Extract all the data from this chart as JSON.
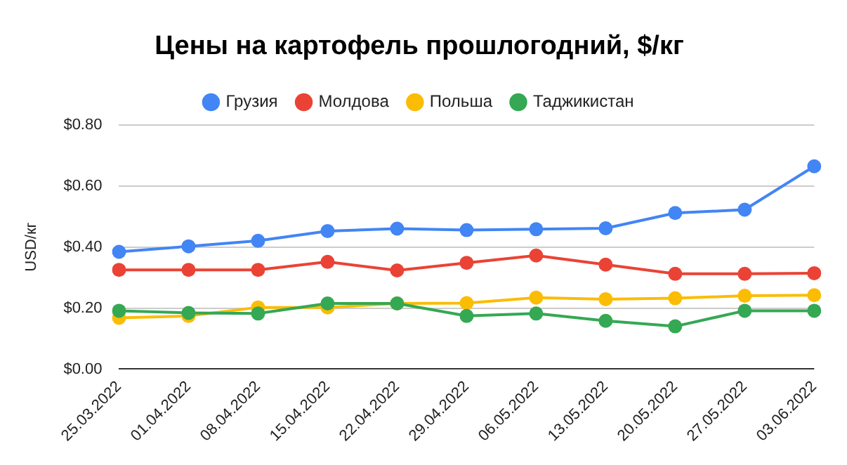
{
  "chart_data": {
    "type": "line",
    "title": "Цены на картофель прошлогодний, $/кг",
    "ylabel": "USD/кг",
    "categories": [
      "25.03.2022",
      "01.04.2022",
      "08.04.2022",
      "15.04.2022",
      "22.04.2022",
      "29.04.2022",
      "06.05.2022",
      "13.05.2022",
      "20.05.2022",
      "27.05.2022",
      "03.06.2022"
    ],
    "series": [
      {
        "name": "Грузия",
        "color": "#4285f4",
        "values": [
          0.384,
          0.402,
          0.42,
          0.452,
          0.46,
          0.455,
          0.458,
          0.461,
          0.511,
          0.522,
          0.664
        ]
      },
      {
        "name": "Молдова",
        "color": "#ea4335",
        "values": [
          0.325,
          0.325,
          0.325,
          0.351,
          0.323,
          0.348,
          0.372,
          0.342,
          0.312,
          0.312,
          0.314
        ]
      },
      {
        "name": "Польша",
        "color": "#fbbc04",
        "values": [
          0.168,
          0.174,
          0.202,
          0.202,
          0.215,
          0.216,
          0.234,
          0.229,
          0.232,
          0.24,
          0.242
        ]
      },
      {
        "name": "Таджикистан",
        "color": "#34a853",
        "values": [
          0.191,
          0.184,
          0.182,
          0.215,
          0.215,
          0.174,
          0.182,
          0.158,
          0.14,
          0.191,
          0.191
        ]
      }
    ],
    "ylim": [
      0,
      0.8
    ],
    "yticks": [
      {
        "value": 0,
        "label": "$0.00"
      },
      {
        "value": 0.2,
        "label": "$0.20"
      },
      {
        "value": 0.4,
        "label": "$0.40"
      },
      {
        "value": 0.6,
        "label": "$0.60"
      },
      {
        "value": 0.8,
        "label": "$0.80"
      }
    ],
    "grid": "y",
    "legend": "top",
    "marker": "circle",
    "line_style": "solid"
  }
}
